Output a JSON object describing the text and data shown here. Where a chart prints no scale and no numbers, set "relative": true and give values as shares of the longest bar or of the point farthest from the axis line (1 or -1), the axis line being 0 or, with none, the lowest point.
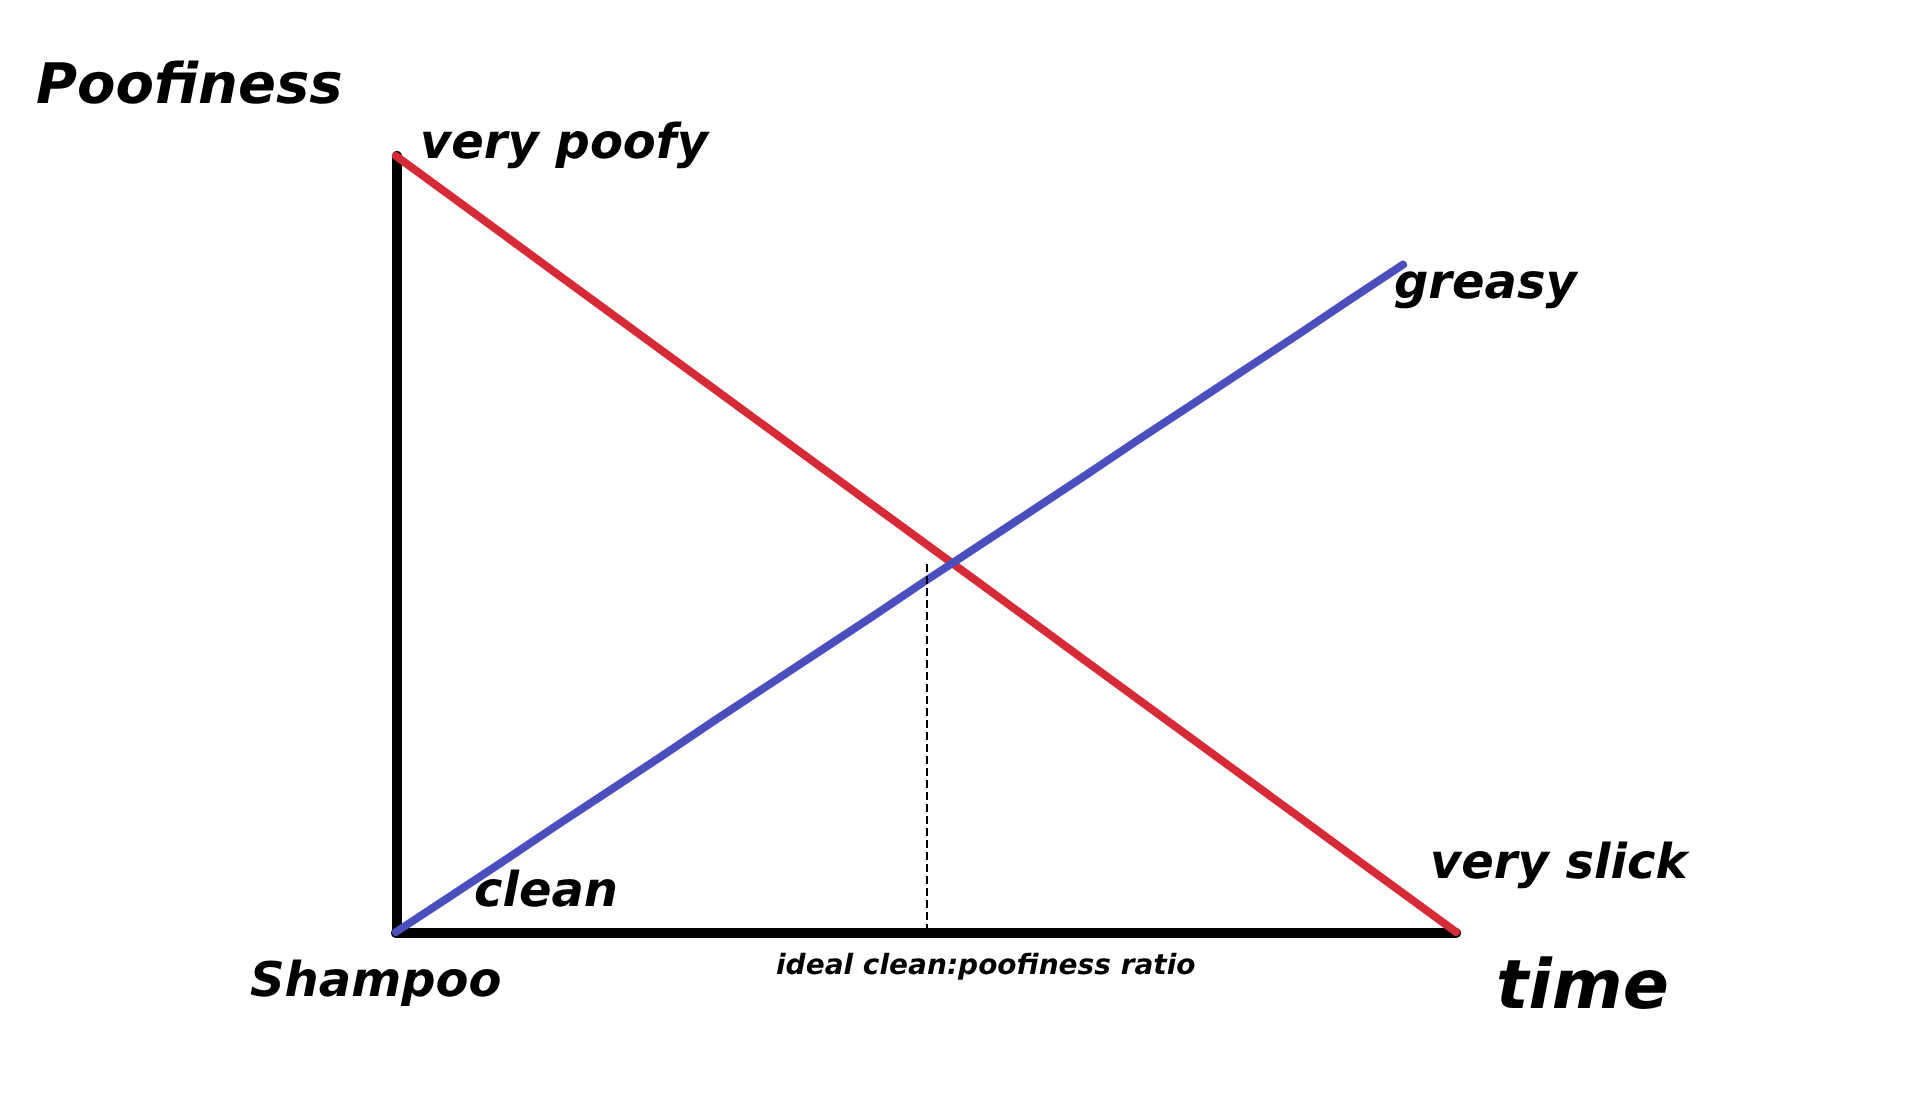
{
  "chart_data": {
    "type": "line",
    "relative": true,
    "ylabel": "Poofiness",
    "xlabel": "time",
    "categories": [
      null,
      null,
      null,
      null,
      null,
      null,
      null,
      null,
      null,
      null,
      null,
      null,
      null,
      null,
      null,
      null,
      null,
      null,
      null,
      null,
      null
    ],
    "series": [
      {
        "color": "#d62b36",
        "values": [
          1,
          0.95,
          0.9,
          0.85,
          0.8,
          0.75,
          0.7,
          0.65,
          0.6,
          0.55,
          0.5,
          0.45,
          0.4,
          0.35,
          0.3,
          0.25,
          0.2,
          0.15,
          0.1,
          0.05,
          0
        ]
      },
      {
        "color": "#4a4fbd",
        "values": [
          0,
          0.045,
          0.09,
          0.136,
          0.181,
          0.226,
          0.272,
          0.317,
          0.362,
          0.407,
          0.453,
          0.498,
          0.543,
          0.588,
          0.634,
          0.679,
          0.724,
          0.769,
          0.815,
          0.86,
          null
        ]
      }
    ],
    "annotations": [
      "very poofy",
      "greasy",
      "clean",
      "very slick",
      "Shampoo",
      "ideal clean:poofiness ratio"
    ],
    "marker": "none",
    "line_style": "solid",
    "grid": false
  }
}
